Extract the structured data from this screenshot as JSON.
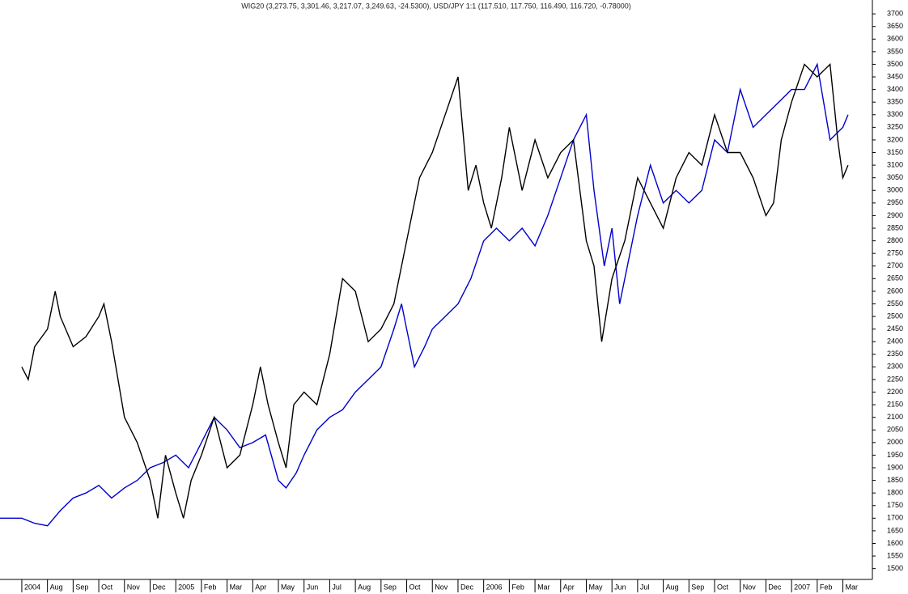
{
  "chart_data": {
    "type": "line",
    "title": "WIG20 (3,273.75, 3,301.46, 3,217.07, 3,249.63, -24.5300), USD/JPY 1:1 (117.510, 117.750, 116.490, 116.720, -0.78000)",
    "xlim": [
      -0.85,
      33.15
    ],
    "xticks": [
      {
        "value": 0,
        "label": "2004"
      },
      {
        "value": 1,
        "label": "Aug"
      },
      {
        "value": 2,
        "label": "Sep"
      },
      {
        "value": 3,
        "label": "Oct"
      },
      {
        "value": 4,
        "label": "Nov"
      },
      {
        "value": 5,
        "label": "Dec"
      },
      {
        "value": 6,
        "label": "2005"
      },
      {
        "value": 7,
        "label": "Feb"
      },
      {
        "value": 8,
        "label": "Mar"
      },
      {
        "value": 9,
        "label": "Apr"
      },
      {
        "value": 10,
        "label": "May"
      },
      {
        "value": 11,
        "label": "Jun"
      },
      {
        "value": 12,
        "label": "Jul"
      },
      {
        "value": 13,
        "label": "Aug"
      },
      {
        "value": 14,
        "label": "Sep"
      },
      {
        "value": 15,
        "label": "Oct"
      },
      {
        "value": 16,
        "label": "Nov"
      },
      {
        "value": 17,
        "label": "Dec"
      },
      {
        "value": 18,
        "label": "2006"
      },
      {
        "value": 19,
        "label": "Feb"
      },
      {
        "value": 20,
        "label": "Mar"
      },
      {
        "value": 21,
        "label": "Apr"
      },
      {
        "value": 22,
        "label": "May"
      },
      {
        "value": 23,
        "label": "Jun"
      },
      {
        "value": 24,
        "label": "Jul"
      },
      {
        "value": 25,
        "label": "Aug"
      },
      {
        "value": 26,
        "label": "Sep"
      },
      {
        "value": 27,
        "label": "Oct"
      },
      {
        "value": 28,
        "label": "Nov"
      },
      {
        "value": 29,
        "label": "Dec"
      },
      {
        "value": 30,
        "label": "2007"
      },
      {
        "value": 31,
        "label": "Feb"
      },
      {
        "value": 32,
        "label": "Mar"
      }
    ],
    "ylim": [
      1470,
      3755
    ],
    "yticks": [
      1500,
      1550,
      1600,
      1650,
      1700,
      1750,
      1800,
      1850,
      1900,
      1950,
      2000,
      2050,
      2100,
      2150,
      2200,
      2250,
      2300,
      2350,
      2400,
      2450,
      2500,
      2550,
      2600,
      2650,
      2700,
      2750,
      2800,
      2850,
      2900,
      2950,
      3000,
      3050,
      3100,
      3150,
      3200,
      3250,
      3300,
      3350,
      3400,
      3450,
      3500,
      3550,
      3600,
      3650,
      3700
    ],
    "series": [
      {
        "color": "#0000cc",
        "x": [
          -0.85,
          0,
          0.5,
          1,
          1.5,
          2,
          2.5,
          3,
          3.5,
          4,
          4.5,
          5,
          5.5,
          6,
          6.5,
          7,
          7.5,
          8,
          8.5,
          9,
          9.5,
          10,
          10.3,
          10.7,
          11,
          11.5,
          12,
          12.5,
          13,
          13.5,
          14,
          14.5,
          14.8,
          15,
          15.3,
          15.7,
          16,
          16.5,
          17,
          17.5,
          18,
          18.5,
          19,
          19.5,
          20,
          20.5,
          21,
          21.5,
          22,
          22.3,
          22.7,
          23,
          23.3,
          23.7,
          24,
          24.5,
          25,
          25.5,
          26,
          26.5,
          27,
          27.5,
          28,
          28.5,
          29,
          29.5,
          30,
          30.5,
          31,
          31.5,
          32,
          32.2
        ],
        "values": [
          1700,
          1700,
          1680,
          1670,
          1730,
          1780,
          1800,
          1830,
          1780,
          1820,
          1850,
          1900,
          1920,
          1950,
          1900,
          2000,
          2100,
          2050,
          1980,
          2000,
          2030,
          1850,
          1820,
          1880,
          1950,
          2050,
          2100,
          2130,
          2200,
          2250,
          2300,
          2450,
          2550,
          2450,
          2300,
          2380,
          2450,
          2500,
          2550,
          2650,
          2800,
          2850,
          2800,
          2850,
          2780,
          2900,
          3050,
          3200,
          3300,
          3000,
          2700,
          2850,
          2550,
          2750,
          2900,
          3100,
          2950,
          3000,
          2950,
          3000,
          3200,
          3150,
          3400,
          3250,
          3300,
          3350,
          3400,
          3400,
          3500,
          3200,
          3250,
          3300
        ]
      },
      {
        "color": "#000000",
        "x": [
          0,
          0.25,
          0.5,
          1,
          1.3,
          1.5,
          2,
          2.5,
          3,
          3.2,
          3.5,
          4,
          4.5,
          5,
          5.3,
          5.6,
          6,
          6.3,
          6.6,
          7,
          7.5,
          8,
          8.5,
          9,
          9.3,
          9.6,
          10,
          10.3,
          10.6,
          11,
          11.5,
          12,
          12.5,
          13,
          13.5,
          14,
          14.5,
          15,
          15.5,
          16,
          16.5,
          17,
          17.4,
          17.7,
          18,
          18.3,
          18.7,
          19,
          19.5,
          20,
          20.5,
          21,
          21.5,
          22,
          22.3,
          22.6,
          23,
          23.5,
          24,
          24.5,
          25,
          25.5,
          26,
          26.5,
          27,
          27.5,
          28,
          28.5,
          29,
          29.3,
          29.6,
          30,
          30.5,
          31,
          31.5,
          31.8,
          32,
          32.2
        ],
        "values": [
          2300,
          2250,
          2380,
          2450,
          2600,
          2500,
          2380,
          2420,
          2500,
          2550,
          2400,
          2100,
          2000,
          1850,
          1700,
          1950,
          1800,
          1700,
          1850,
          1950,
          2100,
          1900,
          1950,
          2150,
          2300,
          2150,
          2000,
          1900,
          2150,
          2200,
          2150,
          2350,
          2650,
          2600,
          2400,
          2450,
          2550,
          2800,
          3050,
          3150,
          3300,
          3450,
          3000,
          3100,
          2950,
          2850,
          3050,
          3250,
          3000,
          3200,
          3050,
          3150,
          3200,
          2800,
          2700,
          2400,
          2650,
          2800,
          3050,
          2950,
          2850,
          3050,
          3150,
          3100,
          3300,
          3150,
          3150,
          3050,
          2900,
          2950,
          3200,
          3350,
          3500,
          3450,
          3500,
          3200,
          3050,
          3100
        ]
      }
    ]
  }
}
